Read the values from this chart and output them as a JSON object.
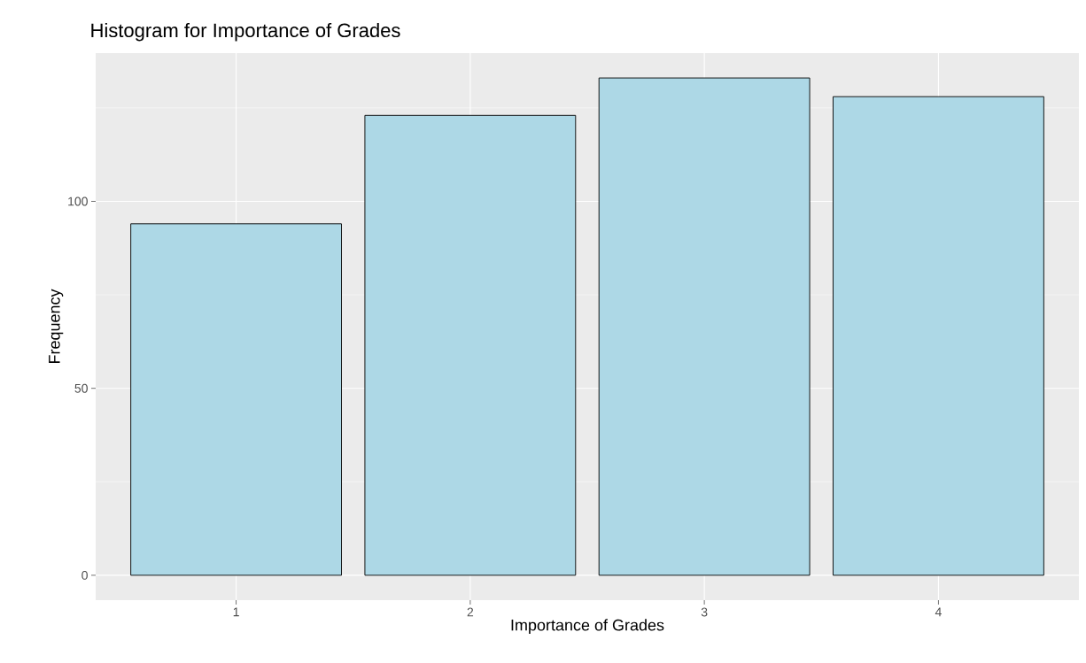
{
  "chart_data": {
    "type": "bar",
    "title": "Histogram for Importance of Grades",
    "xlabel": "Importance of Grades",
    "ylabel": "Frequency",
    "categories": [
      "1",
      "2",
      "3",
      "4"
    ],
    "values": [
      94,
      123,
      133,
      128
    ],
    "color": "#add8e6",
    "ylim": [
      -6.65,
      139.65
    ],
    "yticks": [
      0,
      50,
      100
    ],
    "grid": true
  }
}
